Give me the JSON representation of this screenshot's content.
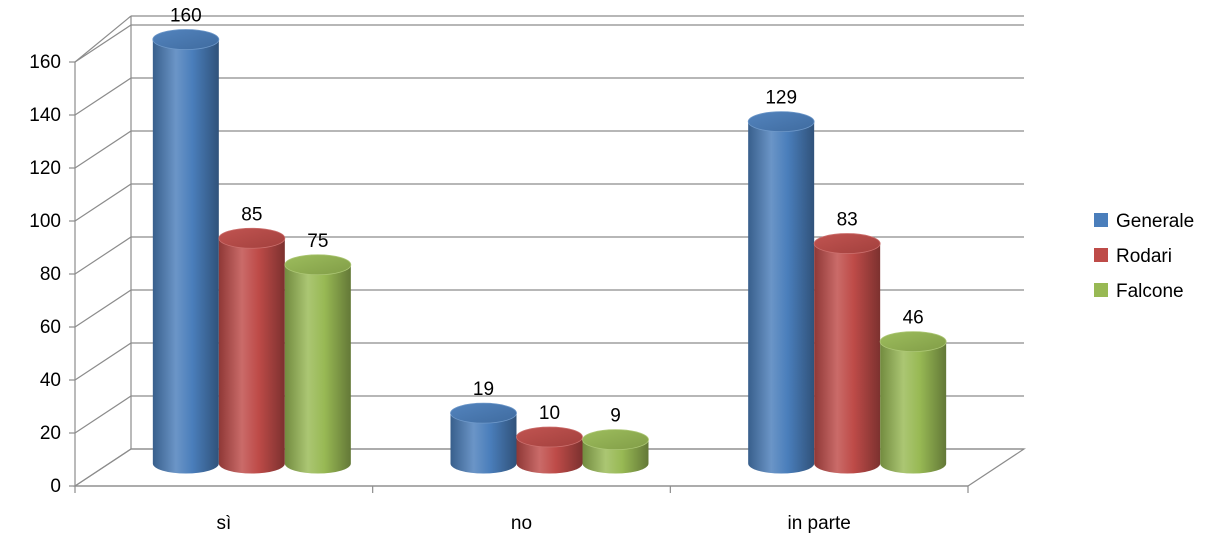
{
  "chart_data": {
    "type": "bar",
    "categories": [
      "sì",
      "no",
      "in parte"
    ],
    "series": [
      {
        "name": "Generale",
        "values": [
          160,
          19,
          129
        ],
        "color": "#4A7EBB"
      },
      {
        "name": "Rodari",
        "values": [
          85,
          10,
          83
        ],
        "color": "#BE4B48"
      },
      {
        "name": "Falcone",
        "values": [
          75,
          9,
          46
        ],
        "color": "#98B954"
      }
    ],
    "ylim": [
      0,
      160
    ],
    "yticks": [
      "0",
      "20",
      "40",
      "60",
      "80",
      "100",
      "120",
      "140",
      "160"
    ],
    "grid": true,
    "legend_position": "right",
    "style": "3d-cylinder"
  }
}
